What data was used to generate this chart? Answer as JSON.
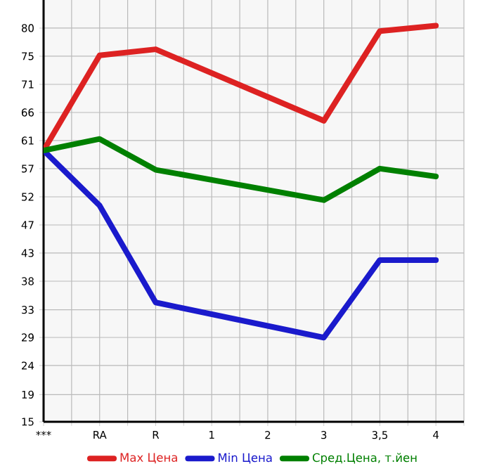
{
  "chart_data": {
    "type": "line",
    "categories": [
      "***",
      "RA",
      "R",
      "1",
      "2",
      "3",
      "3,5",
      "4"
    ],
    "series": [
      {
        "name": "Max Цена",
        "color": "#dd2222",
        "values": [
          59.8,
          75.5,
          76.5,
          null,
          null,
          64.7,
          79.5,
          80.4
        ]
      },
      {
        "name": "Min Цена",
        "color": "#1a1acc",
        "values": [
          59.8,
          50.7,
          34.7,
          null,
          null,
          28.9,
          41.7,
          41.7
        ]
      },
      {
        "name": "Сред.Цена, т.йен",
        "color": "#008000",
        "values": [
          59.8,
          61.7,
          56.6,
          null,
          null,
          51.6,
          56.8,
          55.5
        ]
      }
    ],
    "ylim": [
      15,
      84.64
    ],
    "yticks": [
      15,
      {
        "value": 19.49,
        "label": "19"
      },
      {
        "value": 24.29,
        "label": "24"
      },
      {
        "value": 28.93,
        "label": "29"
      },
      {
        "value": 33.49,
        "label": "33"
      },
      {
        "value": 38.21,
        "label": "38"
      },
      {
        "value": 42.86,
        "label": "43"
      },
      {
        "value": 47.5,
        "label": "47"
      },
      {
        "value": 52.14,
        "label": "52"
      },
      {
        "value": 56.79,
        "label": "57"
      },
      {
        "value": 61.43,
        "label": "61"
      },
      {
        "value": 66.07,
        "label": "66"
      },
      {
        "value": 70.71,
        "label": "71"
      },
      {
        "value": 75.36,
        "label": "75"
      },
      80
    ],
    "grid": true,
    "legend": "bottom"
  }
}
